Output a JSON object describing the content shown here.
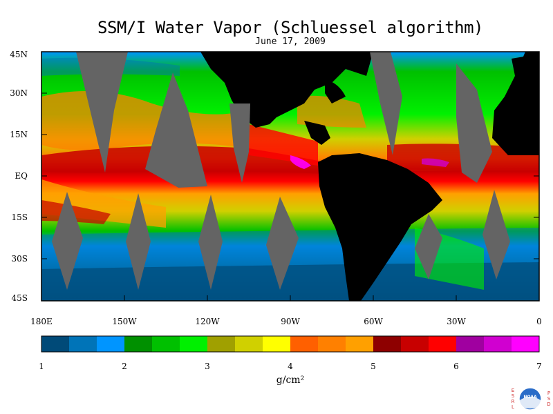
{
  "title": "SSM/I Water Vapor (Schluessel algorithm)",
  "date": "June 17, 2009",
  "lat_labels": [
    "45N",
    "30N",
    "15N",
    "EQ",
    "15S",
    "30S",
    "45S"
  ],
  "lon_labels": [
    "180E",
    "150W",
    "120W",
    "90W",
    "60W",
    "30W",
    "0"
  ],
  "colorbar": {
    "labels": [
      "1",
      "2",
      "3",
      "4",
      "5",
      "6",
      "7"
    ],
    "units": "g/cm²",
    "colors": [
      "#004a78",
      "#0074b8",
      "#0095ff",
      "#009000",
      "#00c000",
      "#00f000",
      "#a0a000",
      "#d0d000",
      "#ffff00",
      "#ff6000",
      "#ff8000",
      "#ffa000",
      "#8e0000",
      "#c80000",
      "#ff0000",
      "#a000a0",
      "#d000d0",
      "#ff00ff"
    ]
  },
  "logo": {
    "left_letters": "ESRL",
    "right_letters": "PSD",
    "center_text": "NOAA"
  },
  "colors": {
    "land": "#000000",
    "no_data": "#646464",
    "background": "#ffffff"
  }
}
